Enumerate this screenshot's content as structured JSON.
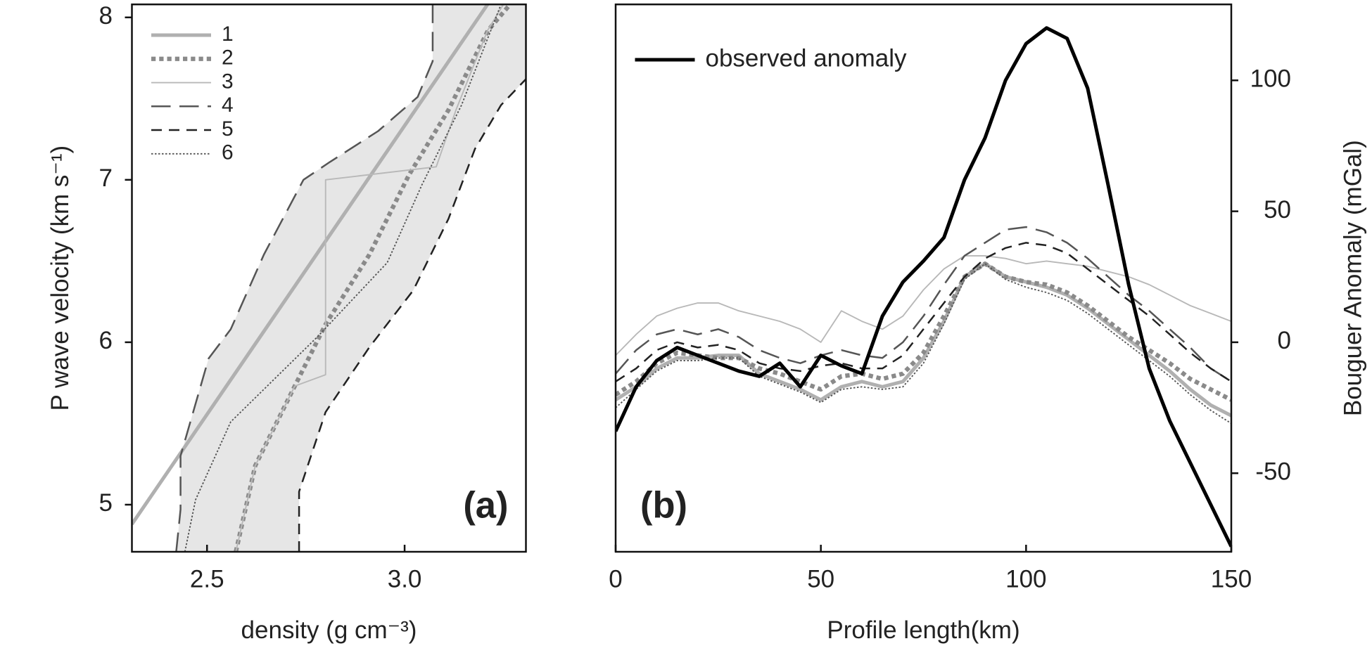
{
  "chart_data": [
    {
      "type": "line",
      "x_label": "density (g cm⁻³)",
      "y_label": "P wave velocity (km s⁻¹)",
      "annotation": "(a)",
      "xlim": [
        2.31,
        3.307
      ],
      "ylim": [
        4.71,
        8.08
      ],
      "xticks": [
        2.5,
        {
          "value": 3,
          "label": "3.0"
        }
      ],
      "yticks": [
        5,
        6,
        7,
        8
      ],
      "legend": "upper left",
      "shade_color": "#e6e6e6",
      "series": [
        {
          "name": "1",
          "color": "#b0b0b0",
          "width": 4,
          "dash": "solid",
          "x": [
            2.31,
            3.21
          ],
          "values": [
            4.88,
            8.08
          ]
        },
        {
          "name": "2",
          "color": "#8a8a8a",
          "width": 5,
          "dash": "dotted",
          "x": [
            2.573,
            2.622,
            2.722,
            2.8,
            2.911,
            3.011,
            3.111,
            3.211,
            3.267
          ],
          "values": [
            4.71,
            5.24,
            5.73,
            6.11,
            6.54,
            7.03,
            7.43,
            7.92,
            8.08
          ]
        },
        {
          "name": "3",
          "color": "#b8b8b8",
          "width": 1.5,
          "dash": "solid",
          "x": [
            2.573,
            2.622,
            2.722,
            2.8,
            2.8,
            3.08,
            3.13,
            3.21,
            3.25
          ],
          "values": [
            4.71,
            5.24,
            5.73,
            5.8,
            7.0,
            7.08,
            7.43,
            7.92,
            8.08
          ]
        },
        {
          "name": "4",
          "color": "#555555",
          "width": 2,
          "dash": "long-dash",
          "x": [
            2.422,
            2.433,
            2.433,
            2.504,
            2.56,
            2.644,
            2.744,
            2.811,
            2.933,
            3.033,
            3.071,
            3.071
          ],
          "values": [
            4.71,
            4.97,
            5.3,
            5.9,
            6.08,
            6.54,
            7.0,
            7.11,
            7.3,
            7.51,
            7.73,
            8.08
          ]
        },
        {
          "name": "5",
          "color": "#222222",
          "width": 2,
          "dash": "dash",
          "x": [
            2.733,
            2.733,
            2.8,
            2.911,
            3.022,
            3.111,
            3.178,
            3.244,
            3.307
          ],
          "values": [
            4.71,
            5.08,
            5.57,
            5.97,
            6.32,
            6.76,
            7.19,
            7.46,
            7.62
          ]
        },
        {
          "name": "6",
          "color": "#555555",
          "width": 1.5,
          "dash": "fine-dotted",
          "x": [
            2.444,
            2.471,
            2.56,
            2.778,
            2.956,
            3.044,
            3.144,
            3.244
          ],
          "values": [
            4.71,
            5.03,
            5.51,
            6.03,
            6.49,
            6.97,
            7.46,
            8.08
          ]
        }
      ]
    },
    {
      "type": "line",
      "x_label": "Profile length(km)",
      "y_label": "Bouguer Anomaly (mGal)",
      "annotation": "(b)",
      "xlim": [
        0,
        150
      ],
      "ylim": [
        -80,
        129
      ],
      "y_axis_side": "right",
      "xticks": [
        0,
        50,
        100,
        150
      ],
      "yticks": [
        -50,
        0,
        50,
        100
      ],
      "legend": "upper left",
      "x": [
        0,
        5,
        10,
        15,
        20,
        25,
        30,
        35,
        40,
        45,
        50,
        55,
        60,
        65,
        70,
        75,
        80,
        85,
        90,
        95,
        100,
        105,
        110,
        115,
        120,
        125,
        130,
        135,
        140,
        145,
        150
      ],
      "series": [
        {
          "color": "#b0b0b0",
          "width": 4,
          "dash": "solid",
          "values": [
            -22,
            -17,
            -10,
            -6,
            -6,
            -5,
            -5,
            -12,
            -15,
            -18,
            -22,
            -17,
            -15,
            -17,
            -15,
            -6,
            8,
            25,
            30,
            25,
            23,
            21,
            18,
            13,
            7,
            1,
            -5,
            -11,
            -18,
            -24,
            -28
          ]
        },
        {
          "color": "#8a8a8a",
          "width": 5,
          "dash": "dotted",
          "values": [
            -20,
            -15,
            -8,
            -4,
            -5,
            -6,
            -6,
            -10,
            -12,
            -15,
            -18,
            -13,
            -12,
            -14,
            -12,
            -4,
            10,
            25,
            30,
            25,
            23,
            22,
            19,
            14,
            8,
            2,
            -3,
            -8,
            -14,
            -18,
            -22
          ]
        },
        {
          "color": "#b8b8b8",
          "width": 1.5,
          "dash": "solid",
          "values": [
            -5,
            3,
            10,
            13,
            15,
            15,
            12,
            10,
            8,
            5,
            0,
            12,
            8,
            5,
            10,
            20,
            28,
            33,
            33,
            32,
            30,
            31,
            30,
            29,
            27,
            25,
            22,
            18,
            14,
            11,
            8
          ]
        },
        {
          "color": "#555555",
          "width": 2,
          "dash": "long-dash",
          "values": [
            -12,
            -3,
            3,
            5,
            3,
            5,
            2,
            -3,
            -6,
            -8,
            -5,
            -3,
            -5,
            -6,
            0,
            10,
            22,
            33,
            38,
            43,
            44,
            42,
            38,
            32,
            25,
            18,
            12,
            5,
            -2,
            -10,
            -15
          ]
        },
        {
          "color": "#222222",
          "width": 2,
          "dash": "dash",
          "values": [
            -15,
            -10,
            -3,
            0,
            -2,
            -1,
            -3,
            -8,
            -10,
            -11,
            -9,
            -8,
            -10,
            -10,
            -5,
            5,
            15,
            25,
            32,
            36,
            38,
            37,
            34,
            28,
            22,
            16,
            10,
            3,
            -4,
            -10,
            -15
          ]
        },
        {
          "color": "#555555",
          "width": 1.5,
          "dash": "fine-dotted",
          "values": [
            -25,
            -18,
            -11,
            -7,
            -7,
            -6,
            -6,
            -13,
            -16,
            -19,
            -23,
            -18,
            -17,
            -18,
            -17,
            -8,
            7,
            24,
            30,
            24,
            21,
            19,
            16,
            11,
            5,
            -1,
            -7,
            -13,
            -20,
            -26,
            -31
          ]
        },
        {
          "name": "observed anomaly",
          "color": "#000000",
          "width": 4,
          "dash": "solid",
          "values": [
            -34,
            -17,
            -7,
            -2,
            -5,
            -8,
            -11,
            -13,
            -8,
            -17,
            -5,
            -9,
            -12,
            10,
            23,
            31,
            40,
            62,
            78,
            100,
            114,
            120,
            116,
            97,
            60,
            22,
            -10,
            -30,
            -46,
            -62,
            -78
          ]
        }
      ]
    }
  ]
}
